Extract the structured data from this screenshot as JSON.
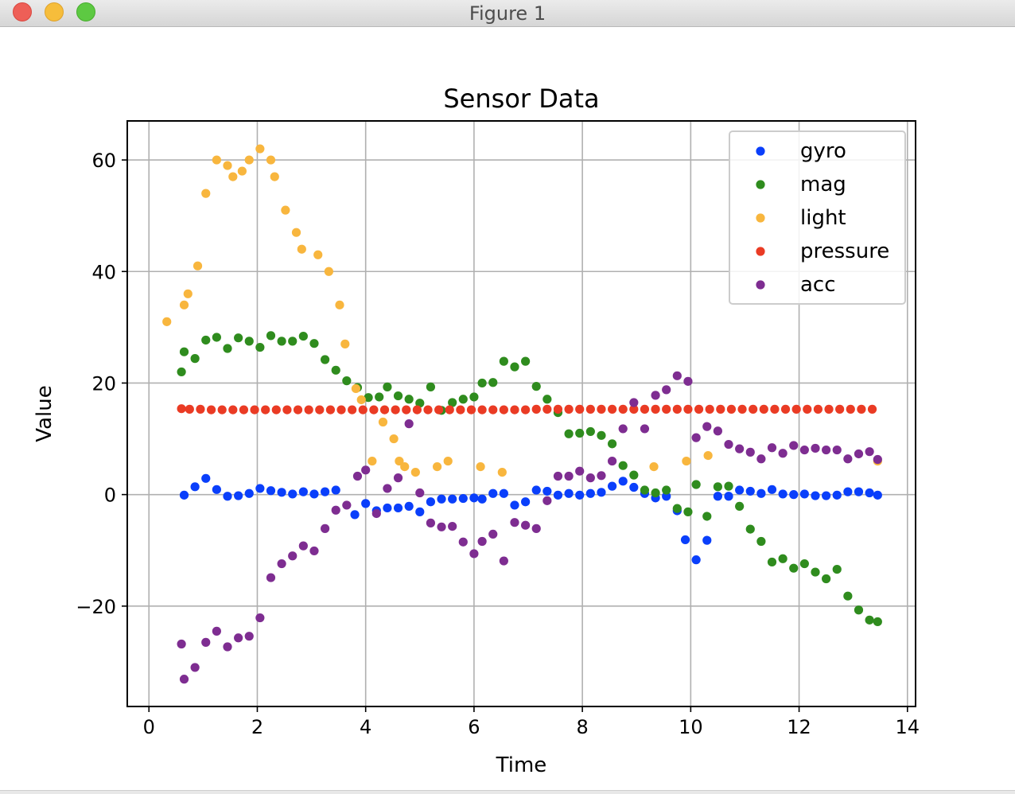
{
  "window": {
    "title": "Figure 1",
    "buttons": [
      "close",
      "minimize",
      "zoom"
    ]
  },
  "chart_data": {
    "type": "scatter",
    "title": "Sensor Data",
    "xlabel": "Time",
    "ylabel": "Value",
    "xlim": [
      -0.4,
      14.15
    ],
    "ylim": [
      -38,
      67
    ],
    "xticks": [
      0,
      2,
      4,
      6,
      8,
      10,
      12,
      14
    ],
    "yticks": [
      -20,
      0,
      20,
      40,
      60
    ],
    "ytick_labels": [
      "−20",
      "0",
      "20",
      "40",
      "60"
    ],
    "grid": true,
    "legend_position": "top-right",
    "series": [
      {
        "name": "gyro",
        "color": "#0a3ffb",
        "x": [
          0.65,
          0.85,
          1.05,
          1.25,
          1.45,
          1.65,
          1.85,
          2.05,
          2.25,
          2.45,
          2.65,
          2.85,
          3.05,
          3.25,
          3.45,
          3.8,
          4.0,
          4.2,
          4.4,
          4.6,
          4.8,
          5.0,
          5.2,
          5.4,
          5.6,
          5.8,
          6.0,
          6.15,
          6.35,
          6.55,
          6.75,
          6.95,
          7.15,
          7.35,
          7.55,
          7.75,
          7.95,
          8.15,
          8.35,
          8.55,
          8.75,
          8.95,
          9.15,
          9.35,
          9.55,
          9.75,
          9.9,
          10.1,
          10.3,
          10.5,
          10.7,
          10.9,
          11.1,
          11.3,
          11.5,
          11.7,
          11.9,
          12.1,
          12.3,
          12.5,
          12.7,
          12.9,
          13.1,
          13.3,
          13.45
        ],
        "y": [
          -0.1,
          1.4,
          2.9,
          0.9,
          -0.3,
          -0.2,
          0.2,
          1.1,
          0.7,
          0.4,
          0.1,
          0.5,
          0.1,
          0.5,
          0.8,
          -3.6,
          -1.6,
          -2.9,
          -2.4,
          -2.4,
          -2.1,
          -3.1,
          -1.3,
          -0.8,
          -0.8,
          -0.7,
          -0.6,
          -0.8,
          0.2,
          0.2,
          -1.9,
          -1.3,
          0.8,
          0.6,
          -0.1,
          0.2,
          -0.1,
          0.2,
          0.4,
          1.5,
          2.4,
          1.3,
          0.2,
          -0.6,
          -0.3,
          -2.9,
          -8.1,
          -11.7,
          -8.2,
          -0.3,
          -0.3,
          0.8,
          0.6,
          0.2,
          0.9,
          0.1,
          0.0,
          0.1,
          -0.2,
          -0.2,
          -0.1,
          0.5,
          0.5,
          0.3,
          -0.1
        ]
      },
      {
        "name": "mag",
        "color": "#2f8c1e",
        "x": [
          0.6,
          0.65,
          0.85,
          1.05,
          1.25,
          1.45,
          1.65,
          1.85,
          2.05,
          2.25,
          2.45,
          2.65,
          2.85,
          3.05,
          3.25,
          3.45,
          3.65,
          3.85,
          4.05,
          4.25,
          4.4,
          4.6,
          4.8,
          5.0,
          5.2,
          5.4,
          5.6,
          5.8,
          6.0,
          6.15,
          6.35,
          6.55,
          6.75,
          6.95,
          7.15,
          7.35,
          7.55,
          7.75,
          7.95,
          8.15,
          8.35,
          8.55,
          8.75,
          8.95,
          9.15,
          9.35,
          9.55,
          9.75,
          9.95,
          10.1,
          10.3,
          10.5,
          10.7,
          10.9,
          11.1,
          11.3,
          11.5,
          11.7,
          11.9,
          12.1,
          12.3,
          12.5,
          12.7,
          12.9,
          13.1,
          13.3,
          13.45
        ],
        "y": [
          22.0,
          25.6,
          24.4,
          27.7,
          28.2,
          26.2,
          28.1,
          27.5,
          26.4,
          28.5,
          27.5,
          27.5,
          28.4,
          27.1,
          24.2,
          22.3,
          20.4,
          19.2,
          17.4,
          17.5,
          19.3,
          17.7,
          17.1,
          16.4,
          19.3,
          15.1,
          16.5,
          17.1,
          17.5,
          20.0,
          20.1,
          23.9,
          22.9,
          23.9,
          19.4,
          17.1,
          14.7,
          10.9,
          11.0,
          11.3,
          10.6,
          9.1,
          5.2,
          3.5,
          0.8,
          0.3,
          0.8,
          -2.5,
          -3.1,
          1.8,
          -3.9,
          1.4,
          1.5,
          -2.1,
          -6.2,
          -8.4,
          -12.1,
          -11.5,
          -13.2,
          -12.4,
          -13.9,
          -15.1,
          -13.4,
          -18.2,
          -20.7,
          -22.5,
          -22.8
        ]
      },
      {
        "name": "light",
        "color": "#f8b63e",
        "x": [
          0.33,
          0.65,
          0.72,
          0.9,
          1.05,
          1.25,
          1.45,
          1.55,
          1.72,
          1.85,
          2.05,
          2.25,
          2.32,
          2.52,
          2.72,
          2.82,
          3.12,
          3.32,
          3.52,
          3.62,
          3.82,
          3.92,
          4.12,
          4.32,
          4.52,
          4.62,
          4.72,
          4.92,
          5.32,
          5.52,
          6.12,
          6.52,
          9.32,
          9.92,
          10.32,
          13.45
        ],
        "y": [
          31,
          34,
          36,
          41,
          54,
          60,
          59,
          57,
          58,
          60,
          62,
          60,
          57,
          51,
          47,
          44,
          43,
          40,
          34,
          27,
          19,
          17,
          6,
          13,
          10,
          6,
          5,
          4,
          5,
          6,
          5,
          4,
          5,
          6,
          7,
          6
        ]
      },
      {
        "name": "pressure",
        "color": "#ea3b24",
        "x": [
          0.6,
          0.75,
          0.95,
          1.15,
          1.35,
          1.55,
          1.75,
          1.95,
          2.15,
          2.35,
          2.55,
          2.75,
          2.95,
          3.15,
          3.35,
          3.55,
          3.75,
          3.95,
          4.15,
          4.35,
          4.55,
          4.75,
          4.95,
          5.15,
          5.35,
          5.55,
          5.75,
          5.95,
          6.15,
          6.35,
          6.55,
          6.75,
          6.95,
          7.15,
          7.35,
          7.55,
          7.75,
          7.95,
          8.15,
          8.35,
          8.55,
          8.75,
          8.95,
          9.15,
          9.35,
          9.55,
          9.75,
          9.95,
          10.15,
          10.35,
          10.55,
          10.75,
          10.95,
          11.15,
          11.35,
          11.55,
          11.75,
          11.95,
          12.15,
          12.35,
          12.55,
          12.75,
          12.95,
          13.15,
          13.35
        ],
        "y": [
          15.4,
          15.3,
          15.3,
          15.2,
          15.2,
          15.2,
          15.2,
          15.2,
          15.2,
          15.2,
          15.2,
          15.2,
          15.2,
          15.2,
          15.2,
          15.2,
          15.2,
          15.2,
          15.2,
          15.2,
          15.2,
          15.2,
          15.2,
          15.2,
          15.2,
          15.2,
          15.2,
          15.2,
          15.2,
          15.2,
          15.2,
          15.2,
          15.2,
          15.3,
          15.3,
          15.3,
          15.3,
          15.3,
          15.3,
          15.3,
          15.3,
          15.3,
          15.3,
          15.3,
          15.3,
          15.3,
          15.3,
          15.3,
          15.3,
          15.3,
          15.3,
          15.3,
          15.3,
          15.3,
          15.3,
          15.3,
          15.3,
          15.3,
          15.3,
          15.3,
          15.3,
          15.3,
          15.3,
          15.3,
          15.3
        ]
      },
      {
        "name": "acc",
        "color": "#7e2d91",
        "x": [
          0.6,
          0.65,
          0.85,
          1.05,
          1.25,
          1.45,
          1.65,
          1.85,
          2.05,
          2.25,
          2.45,
          2.65,
          2.85,
          3.05,
          3.25,
          3.45,
          3.65,
          3.85,
          4.0,
          4.2,
          4.4,
          4.6,
          4.8,
          5.0,
          5.2,
          5.4,
          5.6,
          5.8,
          6.0,
          6.15,
          6.35,
          6.55,
          6.75,
          6.95,
          7.15,
          7.35,
          7.55,
          7.75,
          7.95,
          8.15,
          8.35,
          8.55,
          8.75,
          8.95,
          9.15,
          9.35,
          9.55,
          9.75,
          9.95,
          10.1,
          10.3,
          10.5,
          10.7,
          10.9,
          11.1,
          11.3,
          11.5,
          11.7,
          11.9,
          12.1,
          12.3,
          12.5,
          12.7,
          12.9,
          13.1,
          13.3,
          13.45
        ],
        "y": [
          -26.8,
          -33.1,
          -31.0,
          -26.5,
          -24.5,
          -27.3,
          -25.7,
          -25.4,
          -22.1,
          -14.9,
          -12.4,
          -11.0,
          -9.2,
          -10.1,
          -6.1,
          -2.8,
          -1.9,
          3.3,
          4.4,
          -3.4,
          1.1,
          3.0,
          12.7,
          0.3,
          -5.1,
          -5.8,
          -5.7,
          -8.5,
          -10.6,
          -8.4,
          -7.1,
          -11.9,
          -5.0,
          -5.5,
          -6.1,
          -1.1,
          3.3,
          3.3,
          4.2,
          3.0,
          3.4,
          6.0,
          11.8,
          16.5,
          11.8,
          17.8,
          18.8,
          21.3,
          20.3,
          10.2,
          12.2,
          11.4,
          9.0,
          8.2,
          7.6,
          6.4,
          8.4,
          7.4,
          8.8,
          8.0,
          8.3,
          8.0,
          8.0,
          6.4,
          7.3,
          7.7,
          6.3
        ]
      }
    ]
  }
}
